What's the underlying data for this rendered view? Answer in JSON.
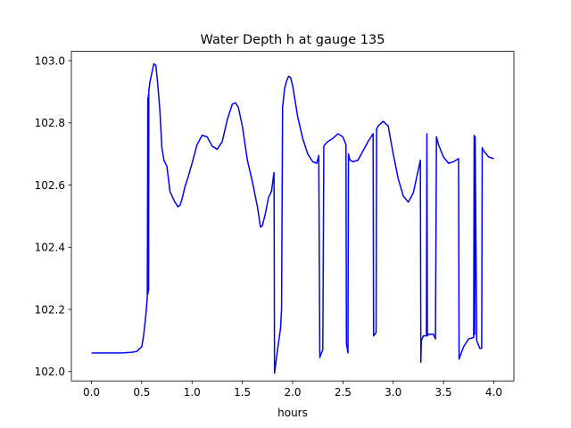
{
  "chart_data": {
    "type": "line",
    "title": "Water Depth h at gauge 135",
    "xlabel": "hours",
    "ylabel": "",
    "xlim": [
      -0.2,
      4.2
    ],
    "ylim": [
      101.97,
      103.03
    ],
    "xticks": [
      0.0,
      0.5,
      1.0,
      1.5,
      2.0,
      2.5,
      3.0,
      3.5,
      4.0
    ],
    "xtick_labels": [
      "0.0",
      "0.5",
      "1.0",
      "1.5",
      "2.0",
      "2.5",
      "3.0",
      "3.5",
      "4.0"
    ],
    "yticks": [
      102.0,
      102.2,
      102.4,
      102.6,
      102.8,
      103.0
    ],
    "ytick_labels": [
      "102.0",
      "102.2",
      "102.4",
      "102.6",
      "102.8",
      "103.0"
    ],
    "grid": false,
    "series": [
      {
        "color": "#0000ff",
        "x": [
          0.0,
          0.3,
          0.4,
          0.45,
          0.5,
          0.52,
          0.54,
          0.555,
          0.56,
          0.562,
          0.566,
          0.568,
          0.57,
          0.572,
          0.575,
          0.58,
          0.6,
          0.62,
          0.64,
          0.66,
          0.68,
          0.7,
          0.72,
          0.75,
          0.78,
          0.8,
          0.83,
          0.86,
          0.88,
          0.9,
          0.93,
          0.96,
          1.0,
          1.05,
          1.1,
          1.15,
          1.2,
          1.25,
          1.3,
          1.35,
          1.4,
          1.43,
          1.46,
          1.5,
          1.55,
          1.6,
          1.65,
          1.68,
          1.7,
          1.73,
          1.76,
          1.79,
          1.81,
          1.815,
          1.82,
          1.85,
          1.88,
          1.89,
          1.9,
          1.92,
          1.94,
          1.96,
          1.98,
          2.0,
          2.05,
          2.1,
          2.15,
          2.2,
          2.24,
          2.26,
          2.27,
          2.28,
          2.3,
          2.31,
          2.32,
          2.35,
          2.4,
          2.45,
          2.5,
          2.53,
          2.535,
          2.55,
          2.555,
          2.57,
          2.6,
          2.65,
          2.7,
          2.75,
          2.8,
          2.805,
          2.83,
          2.835,
          2.85,
          2.9,
          2.95,
          3.0,
          3.05,
          3.1,
          3.15,
          3.2,
          3.25,
          3.27,
          3.275,
          3.28,
          3.3,
          3.33,
          3.335,
          3.34,
          3.35,
          3.4,
          3.42,
          3.43,
          3.45,
          3.5,
          3.55,
          3.6,
          3.65,
          3.655,
          3.66,
          3.7,
          3.75,
          3.8,
          3.805,
          3.81,
          3.815,
          3.83,
          3.86,
          3.88,
          3.885,
          3.9,
          3.95,
          4.0
        ],
        "y": [
          102.06,
          102.06,
          102.062,
          102.065,
          102.08,
          102.12,
          102.18,
          102.24,
          102.88,
          102.25,
          102.89,
          102.26,
          102.9,
          102.91,
          102.915,
          102.93,
          102.96,
          102.99,
          102.985,
          102.92,
          102.84,
          102.72,
          102.68,
          102.66,
          102.58,
          102.565,
          102.545,
          102.53,
          102.535,
          102.555,
          102.595,
          102.625,
          102.67,
          102.73,
          102.76,
          102.755,
          102.725,
          102.715,
          102.74,
          102.81,
          102.86,
          102.865,
          102.85,
          102.79,
          102.68,
          102.61,
          102.53,
          102.465,
          102.47,
          102.51,
          102.56,
          102.58,
          102.63,
          102.64,
          101.995,
          102.07,
          102.14,
          102.2,
          102.85,
          102.91,
          102.935,
          102.95,
          102.945,
          102.92,
          102.82,
          102.75,
          102.7,
          102.675,
          102.67,
          102.695,
          102.045,
          102.055,
          102.07,
          102.725,
          102.73,
          102.74,
          102.75,
          102.765,
          102.755,
          102.73,
          102.09,
          102.06,
          102.7,
          102.68,
          102.675,
          102.68,
          102.71,
          102.74,
          102.765,
          102.115,
          102.125,
          102.78,
          102.79,
          102.805,
          102.79,
          102.7,
          102.62,
          102.565,
          102.545,
          102.575,
          102.65,
          102.68,
          102.03,
          102.1,
          102.115,
          102.115,
          102.765,
          102.115,
          102.12,
          102.12,
          102.105,
          102.755,
          102.73,
          102.69,
          102.67,
          102.675,
          102.685,
          102.04,
          102.045,
          102.08,
          102.105,
          102.11,
          102.76,
          102.12,
          102.755,
          102.1,
          102.075,
          102.075,
          102.72,
          102.71,
          102.69,
          102.685
        ]
      }
    ]
  }
}
